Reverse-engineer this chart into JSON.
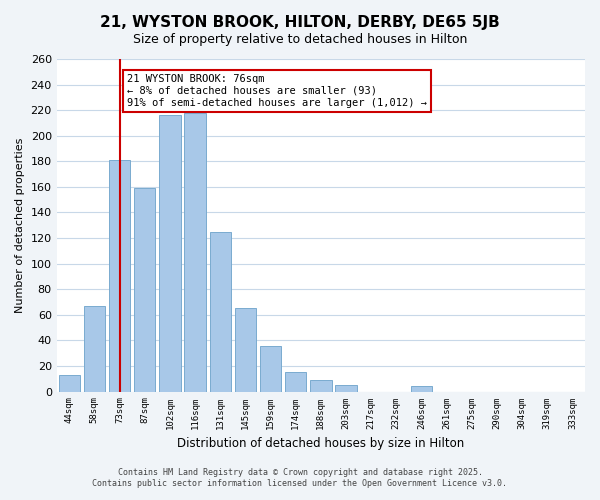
{
  "title": "21, WYSTON BROOK, HILTON, DERBY, DE65 5JB",
  "subtitle": "Size of property relative to detached houses in Hilton",
  "xlabel": "Distribution of detached houses by size in Hilton",
  "ylabel": "Number of detached properties",
  "bin_labels": [
    "44sqm",
    "58sqm",
    "73sqm",
    "87sqm",
    "102sqm",
    "116sqm",
    "131sqm",
    "145sqm",
    "159sqm",
    "174sqm",
    "188sqm",
    "203sqm",
    "217sqm",
    "232sqm",
    "246sqm",
    "261sqm",
    "275sqm",
    "290sqm",
    "304sqm",
    "319sqm",
    "333sqm"
  ],
  "bar_values": [
    13,
    67,
    181,
    159,
    216,
    218,
    125,
    65,
    36,
    15,
    9,
    5,
    0,
    0,
    4,
    0,
    0,
    0,
    0,
    0,
    0
  ],
  "bar_color": "#a8c8e8",
  "bar_edge_color": "#7aabcf",
  "vline_x_index": 2,
  "vline_color": "#cc0000",
  "annotation_text": "21 WYSTON BROOK: 76sqm\n← 8% of detached houses are smaller (93)\n91% of semi-detached houses are larger (1,012) →",
  "annotation_box_color": "#ffffff",
  "annotation_box_edge": "#cc0000",
  "ylim": [
    0,
    260
  ],
  "yticks": [
    0,
    20,
    40,
    60,
    80,
    100,
    120,
    140,
    160,
    180,
    200,
    220,
    240,
    260
  ],
  "footer_line1": "Contains HM Land Registry data © Crown copyright and database right 2025.",
  "footer_line2": "Contains public sector information licensed under the Open Government Licence v3.0.",
  "bg_color": "#f0f4f8",
  "plot_bg_color": "#ffffff",
  "grid_color": "#c8d8e8"
}
